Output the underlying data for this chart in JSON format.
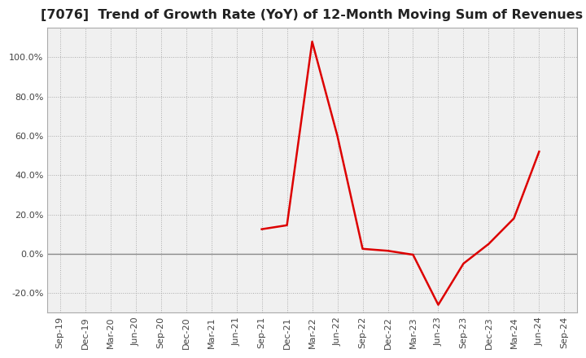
{
  "title": "[7076]  Trend of Growth Rate (YoY) of 12-Month Moving Sum of Revenues",
  "title_fontsize": 11.5,
  "background_color": "#ffffff",
  "plot_background_color": "#f0f0f0",
  "grid_color": "#aaaaaa",
  "line_color": "#dd0000",
  "ylim": [
    -0.3,
    1.15
  ],
  "yticks": [
    -0.2,
    0.0,
    0.2,
    0.4,
    0.6,
    0.8,
    1.0
  ],
  "dates": [
    "Sep-19",
    "Dec-19",
    "Mar-20",
    "Jun-20",
    "Sep-20",
    "Dec-20",
    "Mar-21",
    "Jun-21",
    "Sep-21",
    "Dec-21",
    "Mar-22",
    "Jun-22",
    "Sep-22",
    "Dec-22",
    "Mar-23",
    "Jun-23",
    "Sep-23",
    "Dec-23",
    "Mar-24",
    "Jun-24",
    "Sep-24"
  ],
  "values": [
    null,
    null,
    null,
    null,
    null,
    null,
    null,
    null,
    null,
    null,
    null,
    null,
    null,
    null,
    null,
    null,
    null,
    null,
    null,
    null,
    null
  ],
  "data_points": {
    "Sep-21": 0.125,
    "Dec-21": 0.145,
    "Mar-22": 1.08,
    "Jun-22": 0.6,
    "Sep-22": 0.025,
    "Dec-22": 0.015,
    "Mar-23": -0.005,
    "Jun-23": -0.26,
    "Sep-23": -0.05,
    "Dec-23": 0.05,
    "Mar-24": 0.18,
    "Jun-24": 0.52
  },
  "xtick_labels": [
    "Sep-19",
    "Dec-19",
    "Mar-20",
    "Jun-20",
    "Sep-20",
    "Dec-20",
    "Mar-21",
    "Jun-21",
    "Sep-21",
    "Dec-21",
    "Mar-22",
    "Jun-22",
    "Sep-22",
    "Dec-22",
    "Mar-23",
    "Jun-23",
    "Sep-23",
    "Dec-23",
    "Mar-24",
    "Jun-24",
    "Sep-24"
  ]
}
